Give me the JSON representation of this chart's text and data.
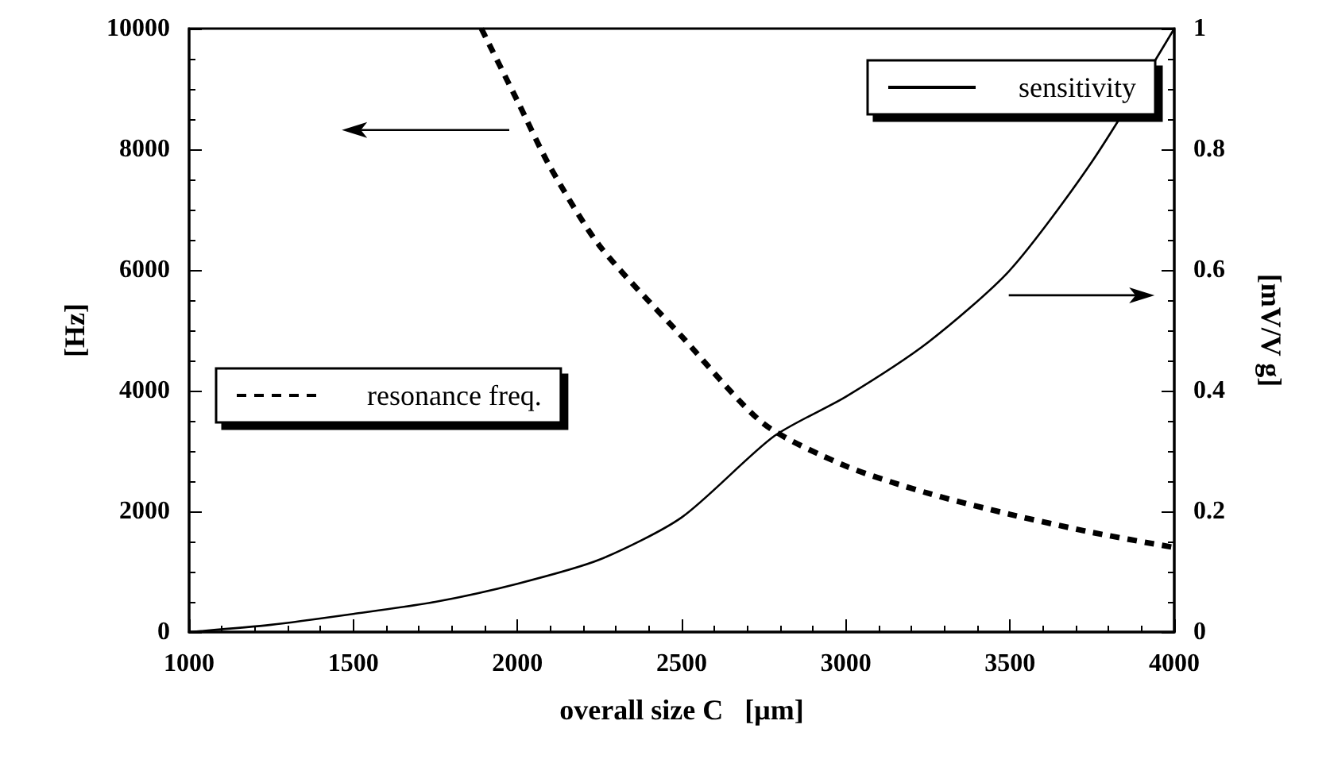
{
  "chart_data": {
    "type": "line",
    "xlabel": "overall size C   [μm]",
    "ylabel": "[Hz]",
    "y2label": "[mV/V g]",
    "xlim": [
      1000,
      4000
    ],
    "xticks": [
      1000,
      1500,
      2000,
      2500,
      3000,
      3500,
      4000
    ],
    "ylim": [
      0,
      10000
    ],
    "yticks": [
      0,
      2000,
      4000,
      6000,
      8000,
      10000
    ],
    "y2lim": [
      0,
      1
    ],
    "y2ticks": [
      0,
      0.2,
      0.4,
      0.6,
      0.8,
      1
    ],
    "legend": "top right",
    "grid": false,
    "marker": "none",
    "series": [
      {
        "name": "sensitivity",
        "color": "#000000",
        "axis": "y2",
        "line_style": "solid",
        "x": [
          1000,
          1250,
          1500,
          1750,
          2000,
          2250,
          2500,
          2780,
          3000,
          3250,
          3500,
          3750,
          4000
        ],
        "values": [
          0,
          0.012,
          0.03,
          0.05,
          0.08,
          0.12,
          0.19,
          0.324,
          0.39,
          0.48,
          0.6,
          0.78,
          1.0
        ]
      },
      {
        "name": "resonance freq.",
        "color": "#000000",
        "axis": "y",
        "line_style": "dashed",
        "x": [
          1890,
          2000,
          2100,
          2250,
          2500,
          2750,
          3000,
          3250,
          3500,
          3750,
          4000
        ],
        "values": [
          10000,
          8800,
          7700,
          6400,
          4900,
          3450,
          2750,
          2300,
          1950,
          1650,
          1400
        ]
      }
    ]
  }
}
